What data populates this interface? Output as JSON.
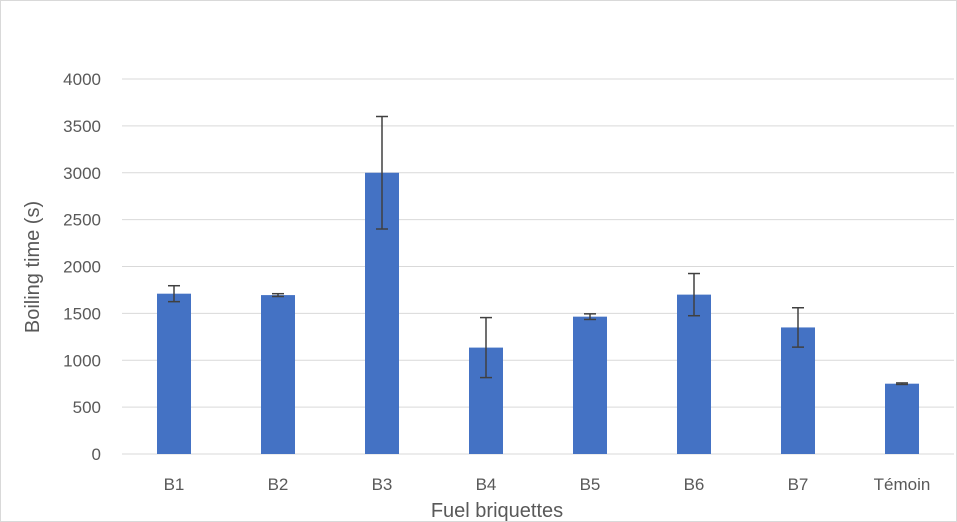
{
  "chart_data": {
    "type": "bar",
    "title": "",
    "xlabel": "Fuel briquettes",
    "ylabel": "Boiling time (s)",
    "categories": [
      "B1",
      "B2",
      "B3",
      "B4",
      "B5",
      "B6",
      "B7",
      "Témoin"
    ],
    "values": [
      1710,
      1695,
      3000,
      1135,
      1465,
      1700,
      1350,
      750
    ],
    "error": [
      85,
      15,
      600,
      320,
      30,
      225,
      210,
      8
    ],
    "ylim": [
      0,
      4000
    ],
    "yticks": [
      0,
      500,
      1000,
      1500,
      2000,
      2500,
      3000,
      3500,
      4000
    ],
    "grid": true,
    "legend": "none",
    "bar_color": "#4472c4",
    "error_color": "#404040",
    "grid_color": "#d9d9d9"
  }
}
